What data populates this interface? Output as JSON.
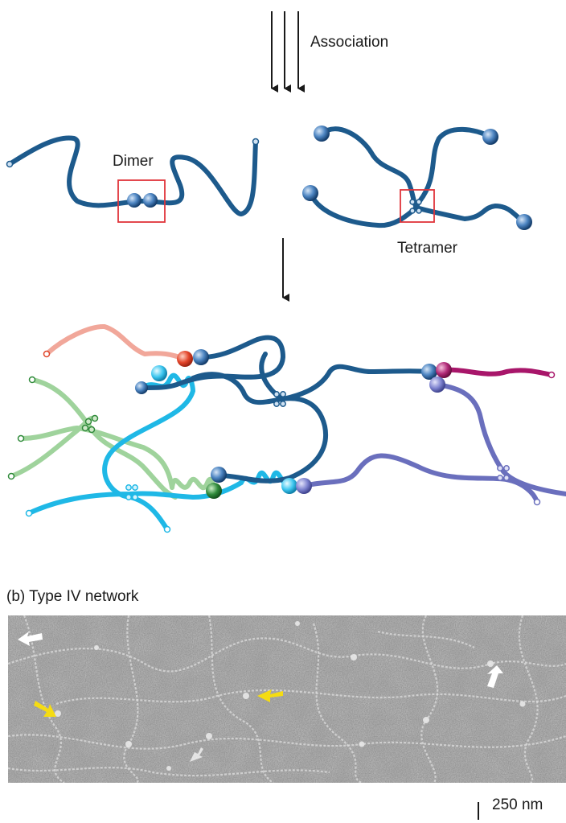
{
  "labels": {
    "association": "Association",
    "dimer": "Dimer",
    "tetramer": "Tetramer",
    "panel_b": "(b) Type IV network",
    "scale": "250 nm"
  },
  "colors": {
    "dark_blue": "#1d5a8c",
    "light_blue": "#1fb8e6",
    "light_green": "#9fd39c",
    "green_node": "#2f8a3a",
    "pink": "#f1a79a",
    "red_node": "#e0452a",
    "violet": "#6a6fbd",
    "magenta": "#a8166a",
    "box_red": "#e0343a",
    "arrow_white": "#ffffff",
    "arrow_yellow": "#f5dc12"
  },
  "micrograph": {
    "description_icon": "electron-micrograph",
    "white_arrows": 3,
    "yellow_arrows": 2
  }
}
